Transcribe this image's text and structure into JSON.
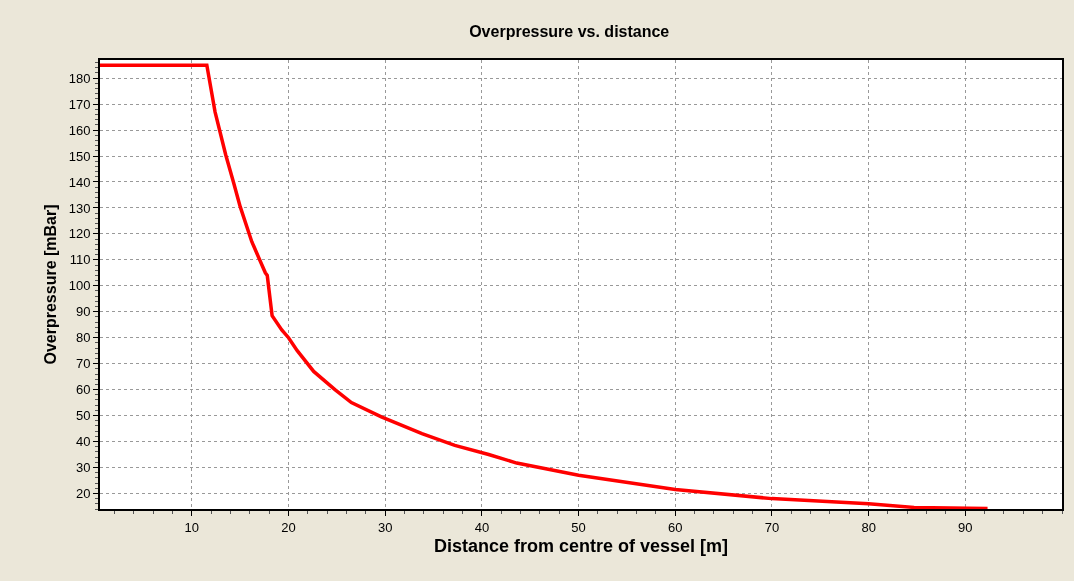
{
  "chart_data": {
    "type": "line",
    "title": "Overpressure vs. distance",
    "xlabel": "Distance from centre of vessel [m]",
    "ylabel": "Overpressure [mBar]",
    "x": [
      0.5,
      11.55,
      12.4,
      13.5,
      14.3,
      15.0,
      16.2,
      17.6,
      17.8,
      18.3,
      19.3,
      20.0,
      20.9,
      22.6,
      24.8,
      26.5,
      29.6,
      33.8,
      37.2,
      40.7,
      43.6,
      50.0,
      60.0,
      70.0,
      80.0,
      84.7,
      92.3
    ],
    "series": [
      {
        "color": "#ff0000",
        "values": [
          185,
          185,
          167,
          150.5,
          140,
          130.5,
          117,
          105,
          104,
          88.5,
          83,
          80,
          75,
          67,
          60,
          55,
          49.5,
          43,
          38.5,
          35,
          31.7,
          27,
          21.5,
          18,
          16,
          14.6,
          14.2
        ]
      }
    ],
    "xlim": [
      0.5,
      100
    ],
    "xticks": [
      10,
      20,
      30,
      40,
      50,
      60,
      70,
      80,
      90
    ],
    "ylim": [
      14,
      187
    ],
    "yticks": [
      20,
      30,
      40,
      50,
      60,
      70,
      80,
      90,
      100,
      110,
      120,
      130,
      140,
      150,
      160,
      170,
      180
    ],
    "grid": true,
    "marker": "none",
    "line_style": "solid"
  }
}
